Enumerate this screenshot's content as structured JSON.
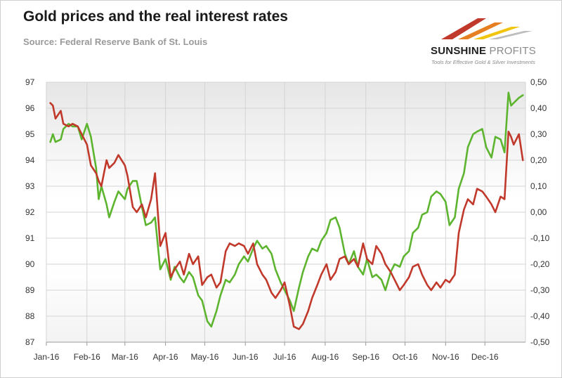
{
  "header": {
    "title": "Gold prices and the real interest rates",
    "subtitle": "Source: Federal Reserve Bank of St. Louis"
  },
  "logo": {
    "name_part1": "SUNSHINE",
    "name_part2": "PROFITS",
    "tagline": "Tools for Effective Gold & Silver Investments"
  },
  "colors": {
    "gold_series": "#5db52f",
    "rate_series": "#c0392b",
    "grid": "#d4d4d4",
    "band_top": "#e8e8e8"
  },
  "chart_data": {
    "type": "line",
    "x_tick_labels": [
      "Jan-16",
      "Feb-16",
      "Mar-16",
      "Apr-16",
      "May-16",
      "Jun-16",
      "Jul-16",
      "Aug-16",
      "Sep-16",
      "Oct-16",
      "Nov-16",
      "Dec-16"
    ],
    "left_axis": {
      "ylim": [
        87,
        97
      ],
      "ticks": [
        "87",
        "88",
        "89",
        "90",
        "91",
        "92",
        "93",
        "94",
        "95",
        "96",
        "97"
      ]
    },
    "right_axis": {
      "ylim": [
        -0.5,
        0.5
      ],
      "ticks": [
        "-0,50",
        "-0,40",
        "-0,30",
        "-0,20",
        "-0,10",
        "0,00",
        "0,10",
        "0,20",
        "0,30",
        "0,40",
        "0,50"
      ]
    },
    "grid": true,
    "series": [
      {
        "axis": "left",
        "color": "#5db52f",
        "points": [
          [
            "2016-01-04",
            94.7
          ],
          [
            "2016-01-06",
            95.0
          ],
          [
            "2016-01-08",
            94.7
          ],
          [
            "2016-01-12",
            94.8
          ],
          [
            "2016-01-14",
            95.2
          ],
          [
            "2016-01-18",
            95.4
          ],
          [
            "2016-01-21",
            95.3
          ],
          [
            "2016-01-25",
            95.3
          ],
          [
            "2016-01-28",
            94.8
          ],
          [
            "2016-02-01",
            95.4
          ],
          [
            "2016-02-04",
            94.9
          ],
          [
            "2016-02-08",
            93.7
          ],
          [
            "2016-02-10",
            92.5
          ],
          [
            "2016-02-12",
            93.0
          ],
          [
            "2016-02-16",
            92.3
          ],
          [
            "2016-02-18",
            91.8
          ],
          [
            "2016-02-22",
            92.4
          ],
          [
            "2016-02-25",
            92.8
          ],
          [
            "2016-03-01",
            92.5
          ],
          [
            "2016-03-03",
            92.9
          ],
          [
            "2016-03-07",
            93.2
          ],
          [
            "2016-03-10",
            93.2
          ],
          [
            "2016-03-14",
            92.2
          ],
          [
            "2016-03-17",
            91.5
          ],
          [
            "2016-03-21",
            91.6
          ],
          [
            "2016-03-24",
            91.8
          ],
          [
            "2016-03-28",
            89.8
          ],
          [
            "2016-04-01",
            90.2
          ],
          [
            "2016-04-05",
            89.4
          ],
          [
            "2016-04-08",
            89.9
          ],
          [
            "2016-04-12",
            89.5
          ],
          [
            "2016-04-15",
            89.3
          ],
          [
            "2016-04-19",
            89.7
          ],
          [
            "2016-04-22",
            89.5
          ],
          [
            "2016-04-26",
            88.8
          ],
          [
            "2016-04-29",
            88.6
          ],
          [
            "2016-05-03",
            87.8
          ],
          [
            "2016-05-06",
            87.6
          ],
          [
            "2016-05-10",
            88.2
          ],
          [
            "2016-05-13",
            88.8
          ],
          [
            "2016-05-17",
            89.4
          ],
          [
            "2016-05-20",
            89.3
          ],
          [
            "2016-05-24",
            89.6
          ],
          [
            "2016-05-27",
            90.0
          ],
          [
            "2016-05-31",
            90.3
          ],
          [
            "2016-06-03",
            90.1
          ],
          [
            "2016-06-07",
            90.6
          ],
          [
            "2016-06-10",
            90.9
          ],
          [
            "2016-06-14",
            90.6
          ],
          [
            "2016-06-17",
            90.7
          ],
          [
            "2016-06-21",
            90.4
          ],
          [
            "2016-06-24",
            89.8
          ],
          [
            "2016-06-28",
            89.3
          ],
          [
            "2016-07-01",
            89.0
          ],
          [
            "2016-07-05",
            88.6
          ],
          [
            "2016-07-08",
            88.2
          ],
          [
            "2016-07-12",
            89.1
          ],
          [
            "2016-07-15",
            89.7
          ],
          [
            "2016-07-19",
            90.3
          ],
          [
            "2016-07-22",
            90.6
          ],
          [
            "2016-07-26",
            90.5
          ],
          [
            "2016-07-29",
            90.9
          ],
          [
            "2016-08-02",
            91.2
          ],
          [
            "2016-08-05",
            91.7
          ],
          [
            "2016-08-09",
            91.8
          ],
          [
            "2016-08-12",
            91.4
          ],
          [
            "2016-08-16",
            90.4
          ],
          [
            "2016-08-19",
            90.0
          ],
          [
            "2016-08-23",
            90.5
          ],
          [
            "2016-08-26",
            89.9
          ],
          [
            "2016-08-30",
            89.6
          ],
          [
            "2016-09-02",
            90.2
          ],
          [
            "2016-09-06",
            89.5
          ],
          [
            "2016-09-09",
            89.6
          ],
          [
            "2016-09-13",
            89.4
          ],
          [
            "2016-09-16",
            89.0
          ],
          [
            "2016-09-20",
            89.7
          ],
          [
            "2016-09-23",
            90.0
          ],
          [
            "2016-09-27",
            89.9
          ],
          [
            "2016-09-30",
            90.3
          ],
          [
            "2016-10-04",
            90.5
          ],
          [
            "2016-10-07",
            91.2
          ],
          [
            "2016-10-11",
            91.4
          ],
          [
            "2016-10-14",
            91.9
          ],
          [
            "2016-10-18",
            92.0
          ],
          [
            "2016-10-21",
            92.6
          ],
          [
            "2016-10-25",
            92.8
          ],
          [
            "2016-10-28",
            92.7
          ],
          [
            "2016-11-01",
            92.4
          ],
          [
            "2016-11-04",
            91.5
          ],
          [
            "2016-11-08",
            91.8
          ],
          [
            "2016-11-11",
            92.9
          ],
          [
            "2016-11-15",
            93.5
          ],
          [
            "2016-11-18",
            94.5
          ],
          [
            "2016-11-22",
            95.0
          ],
          [
            "2016-11-25",
            95.1
          ],
          [
            "2016-11-29",
            95.2
          ],
          [
            "2016-12-02",
            94.5
          ],
          [
            "2016-12-06",
            94.1
          ],
          [
            "2016-12-09",
            94.9
          ],
          [
            "2016-12-13",
            94.8
          ],
          [
            "2016-12-16",
            94.3
          ],
          [
            "2016-12-19",
            96.6
          ],
          [
            "2016-12-21",
            96.1
          ],
          [
            "2016-12-23",
            96.2
          ],
          [
            "2016-12-27",
            96.4
          ],
          [
            "2016-12-30",
            96.5
          ]
        ]
      },
      {
        "axis": "right",
        "color": "#c0392b",
        "points": [
          [
            "2016-01-04",
            0.42
          ],
          [
            "2016-01-06",
            0.41
          ],
          [
            "2016-01-08",
            0.36
          ],
          [
            "2016-01-12",
            0.39
          ],
          [
            "2016-01-14",
            0.34
          ],
          [
            "2016-01-18",
            0.33
          ],
          [
            "2016-01-21",
            0.34
          ],
          [
            "2016-01-25",
            0.33
          ],
          [
            "2016-01-28",
            0.3
          ],
          [
            "2016-02-01",
            0.26
          ],
          [
            "2016-02-04",
            0.18
          ],
          [
            "2016-02-08",
            0.15
          ],
          [
            "2016-02-10",
            0.12
          ],
          [
            "2016-02-12",
            0.1
          ],
          [
            "2016-02-16",
            0.2
          ],
          [
            "2016-02-18",
            0.17
          ],
          [
            "2016-02-22",
            0.19
          ],
          [
            "2016-02-25",
            0.22
          ],
          [
            "2016-03-01",
            0.18
          ],
          [
            "2016-03-03",
            0.14
          ],
          [
            "2016-03-07",
            0.02
          ],
          [
            "2016-03-10",
            0.0
          ],
          [
            "2016-03-14",
            0.03
          ],
          [
            "2016-03-17",
            -0.02
          ],
          [
            "2016-03-21",
            0.05
          ],
          [
            "2016-03-24",
            0.15
          ],
          [
            "2016-03-28",
            -0.13
          ],
          [
            "2016-04-01",
            -0.08
          ],
          [
            "2016-04-05",
            -0.25
          ],
          [
            "2016-04-08",
            -0.22
          ],
          [
            "2016-04-12",
            -0.19
          ],
          [
            "2016-04-15",
            -0.24
          ],
          [
            "2016-04-19",
            -0.16
          ],
          [
            "2016-04-22",
            -0.2
          ],
          [
            "2016-04-26",
            -0.17
          ],
          [
            "2016-04-29",
            -0.28
          ],
          [
            "2016-05-03",
            -0.25
          ],
          [
            "2016-05-06",
            -0.24
          ],
          [
            "2016-05-10",
            -0.29
          ],
          [
            "2016-05-13",
            -0.27
          ],
          [
            "2016-05-17",
            -0.15
          ],
          [
            "2016-05-20",
            -0.12
          ],
          [
            "2016-05-24",
            -0.13
          ],
          [
            "2016-05-27",
            -0.12
          ],
          [
            "2016-05-31",
            -0.13
          ],
          [
            "2016-06-03",
            -0.16
          ],
          [
            "2016-06-07",
            -0.12
          ],
          [
            "2016-06-10",
            -0.2
          ],
          [
            "2016-06-14",
            -0.24
          ],
          [
            "2016-06-17",
            -0.26
          ],
          [
            "2016-06-21",
            -0.31
          ],
          [
            "2016-06-24",
            -0.33
          ],
          [
            "2016-06-28",
            -0.3
          ],
          [
            "2016-07-01",
            -0.27
          ],
          [
            "2016-07-05",
            -0.36
          ],
          [
            "2016-07-08",
            -0.44
          ],
          [
            "2016-07-12",
            -0.45
          ],
          [
            "2016-07-15",
            -0.43
          ],
          [
            "2016-07-19",
            -0.38
          ],
          [
            "2016-07-22",
            -0.33
          ],
          [
            "2016-07-26",
            -0.28
          ],
          [
            "2016-07-29",
            -0.24
          ],
          [
            "2016-08-02",
            -0.2
          ],
          [
            "2016-08-05",
            -0.26
          ],
          [
            "2016-08-09",
            -0.23
          ],
          [
            "2016-08-12",
            -0.18
          ],
          [
            "2016-08-16",
            -0.17
          ],
          [
            "2016-08-19",
            -0.2
          ],
          [
            "2016-08-23",
            -0.18
          ],
          [
            "2016-08-26",
            -0.21
          ],
          [
            "2016-08-30",
            -0.12
          ],
          [
            "2016-09-02",
            -0.18
          ],
          [
            "2016-09-06",
            -0.2
          ],
          [
            "2016-09-09",
            -0.13
          ],
          [
            "2016-09-13",
            -0.16
          ],
          [
            "2016-09-16",
            -0.2
          ],
          [
            "2016-09-20",
            -0.23
          ],
          [
            "2016-09-23",
            -0.26
          ],
          [
            "2016-09-27",
            -0.3
          ],
          [
            "2016-09-30",
            -0.28
          ],
          [
            "2016-10-04",
            -0.25
          ],
          [
            "2016-10-07",
            -0.21
          ],
          [
            "2016-10-11",
            -0.2
          ],
          [
            "2016-10-14",
            -0.24
          ],
          [
            "2016-10-18",
            -0.28
          ],
          [
            "2016-10-21",
            -0.3
          ],
          [
            "2016-10-25",
            -0.27
          ],
          [
            "2016-10-28",
            -0.29
          ],
          [
            "2016-11-01",
            -0.26
          ],
          [
            "2016-11-04",
            -0.27
          ],
          [
            "2016-11-08",
            -0.24
          ],
          [
            "2016-11-11",
            -0.08
          ],
          [
            "2016-11-15",
            0.01
          ],
          [
            "2016-11-18",
            0.05
          ],
          [
            "2016-11-22",
            0.03
          ],
          [
            "2016-11-25",
            0.09
          ],
          [
            "2016-11-29",
            0.08
          ],
          [
            "2016-12-02",
            0.06
          ],
          [
            "2016-12-06",
            0.03
          ],
          [
            "2016-12-09",
            0.0
          ],
          [
            "2016-12-13",
            0.06
          ],
          [
            "2016-12-16",
            0.05
          ],
          [
            "2016-12-19",
            0.31
          ],
          [
            "2016-12-21",
            0.29
          ],
          [
            "2016-12-23",
            0.26
          ],
          [
            "2016-12-27",
            0.3
          ],
          [
            "2016-12-30",
            0.2
          ]
        ]
      }
    ]
  }
}
